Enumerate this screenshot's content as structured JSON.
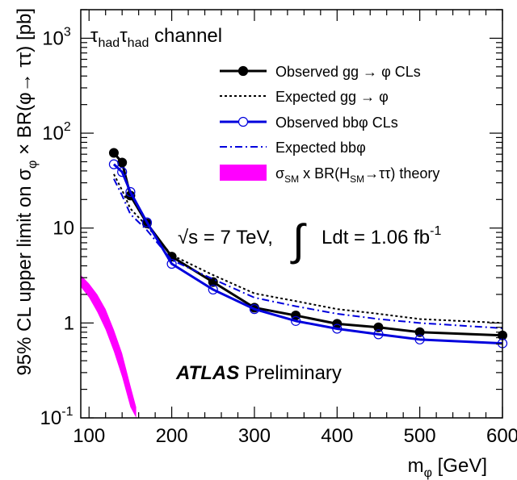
{
  "chart_data": {
    "type": "line",
    "y_scale": "log",
    "xlim": [
      90,
      600
    ],
    "ylim": [
      0.1,
      2000
    ],
    "grid": false,
    "legend_position": "top-right",
    "xlabel_main": "m",
    "xlabel_sub": "φ",
    "xlabel_rest": " [GeV]",
    "ylabel": {
      "p1": "95% CL upper limit on σ",
      "p1_sub": "φ",
      "p2": " × BR(φ→ ττ) [pb]"
    },
    "x_ticks": [
      "100",
      "200",
      "300",
      "400",
      "500",
      "600"
    ],
    "y_ticks": [
      {
        "value": 1000,
        "base": "10",
        "exp": "3"
      },
      {
        "value": 100,
        "base": "10",
        "exp": "2"
      },
      {
        "value": 10,
        "base": "10",
        "exp": ""
      },
      {
        "value": 1,
        "base": "1",
        "exp": ""
      },
      {
        "value": 0.1,
        "base": "10",
        "exp": "-1"
      }
    ],
    "channel_label": {
      "tau": "τ",
      "sub": "had",
      "rest": " channel"
    },
    "energy_label": "√s = 7 TeV,",
    "energy_sqrt": "√",
    "energy_s": "s = 7 TeV,",
    "integral_symbol": "∫",
    "lumi_label": "Ldt = 1.06 fb",
    "lumi_exp": "-1",
    "atlas_label": "ATLAS",
    "atlas_sub": "Preliminary",
    "series": [
      {
        "name": "Observed gg → φ CLs",
        "style": "solid-filled",
        "color": "#000000",
        "x": [
          130,
          140,
          150,
          170,
          200,
          250,
          300,
          350,
          400,
          450,
          500,
          600
        ],
        "y": [
          62,
          49,
          22,
          11.2,
          5.0,
          2.7,
          1.45,
          1.2,
          0.98,
          0.9,
          0.8,
          0.74
        ]
      },
      {
        "name": "Expected gg → φ",
        "style": "dotted",
        "color": "#000000",
        "x": [
          130,
          140,
          150,
          170,
          200,
          250,
          300,
          350,
          400,
          450,
          500,
          600
        ],
        "y": [
          37,
          25,
          16,
          10.5,
          5.2,
          3.2,
          2.05,
          1.7,
          1.4,
          1.25,
          1.1,
          1.0
        ]
      },
      {
        "name": "Observed bbφ CLs",
        "style": "solid-open",
        "color": "#0000dd",
        "x": [
          130,
          140,
          150,
          170,
          200,
          250,
          300,
          350,
          400,
          450,
          500,
          600
        ],
        "y": [
          47,
          39,
          24,
          11.5,
          4.2,
          2.25,
          1.4,
          1.05,
          0.87,
          0.76,
          0.67,
          0.61
        ]
      },
      {
        "name": "Expected bbφ",
        "style": "dashdot",
        "color": "#0000dd",
        "x": [
          130,
          140,
          150,
          170,
          200,
          250,
          300,
          350,
          400,
          450,
          500,
          600
        ],
        "y": [
          33,
          22,
          14,
          9.5,
          4.6,
          2.9,
          1.85,
          1.5,
          1.25,
          1.1,
          1.0,
          0.88
        ]
      }
    ],
    "theory_band": {
      "legend": {
        "sigma": "σ",
        "sm1": "SM",
        "mid": " x BR(H",
        "sm2": "SM",
        "end": "→ττ) theory"
      },
      "color": "#ff00ff",
      "x": [
        90,
        100,
        110,
        120,
        130,
        140,
        150,
        157
      ],
      "y_low": [
        2.4,
        1.85,
        1.3,
        0.85,
        0.5,
        0.27,
        0.13,
        0.1
      ],
      "y_high": [
        3.2,
        2.6,
        2.0,
        1.4,
        0.85,
        0.48,
        0.22,
        0.13
      ]
    }
  }
}
